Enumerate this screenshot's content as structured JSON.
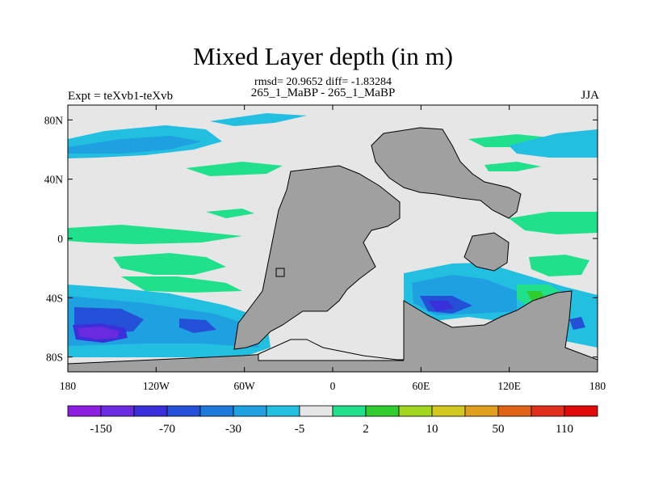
{
  "chart_data": {
    "type": "heatmap",
    "title": "Mixed Layer depth (in m)",
    "stats_line": "rmsd= 20.9652 diff= -1.83284",
    "runs_line": "265_1_MaBP - 265_1_MaBP",
    "left_label": "Expt = teXvb1-teXvb",
    "right_label": "JJA",
    "x_tick_labels": [
      "180",
      "120W",
      "60W",
      "0",
      "60E",
      "120E",
      "180"
    ],
    "y_tick_labels": [
      "80N",
      "40N",
      "0",
      "40S",
      "80S"
    ],
    "xlim": [
      -180,
      180
    ],
    "ylim": [
      -90,
      90
    ],
    "colorbar": {
      "colors": [
        "#8c1fe0",
        "#6a2ae0",
        "#3a2fd8",
        "#2450d8",
        "#1f78dc",
        "#1fa0e0",
        "#23bfe0",
        "#e6e6e6",
        "#20e08c",
        "#30cc30",
        "#a0d61e",
        "#d2c81e",
        "#e0a01e",
        "#e06414",
        "#e0301c",
        "#e00a0a"
      ],
      "tick_labels": [
        "-150",
        "-70",
        "-30",
        "-5",
        "2",
        "10",
        "50",
        "110"
      ]
    }
  }
}
